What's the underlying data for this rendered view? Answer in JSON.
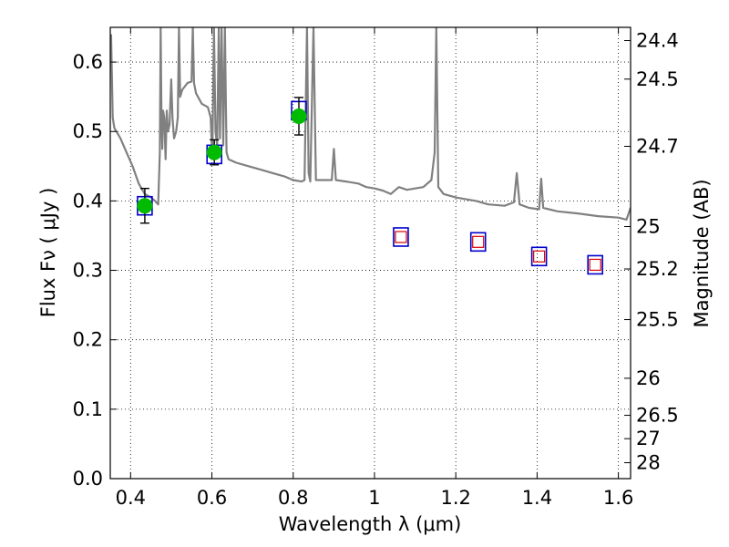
{
  "chart_data": {
    "type": "scatter",
    "title": "",
    "xlabel": "Wavelength  λ (μm)",
    "ylabel": "Flux  Fν  ( μJy )",
    "y2label": "Magnitude (AB)",
    "xlim": [
      0.35,
      1.63
    ],
    "ylim": [
      0.0,
      0.65
    ],
    "grid": true,
    "x_ticks": [
      0.4,
      0.6,
      0.8,
      1.0,
      1.2,
      1.4,
      1.6
    ],
    "x_tick_labels": [
      "0.4",
      "0.6",
      "0.8",
      "1",
      "1.2",
      "1.4",
      "1.6"
    ],
    "y_ticks": [
      0.0,
      0.1,
      0.2,
      0.3,
      0.4,
      0.5,
      0.6
    ],
    "y_tick_labels": [
      "0.0",
      "0.1",
      "0.2",
      "0.3",
      "0.4",
      "0.5",
      "0.6"
    ],
    "mag_ticks": [
      24.4,
      24.5,
      24.7,
      25,
      25.2,
      25.5,
      26,
      26.5,
      27,
      28
    ],
    "mag_tick_labels": [
      "24.4",
      "24.5",
      "24.7",
      "25",
      "25.2",
      "25.5",
      "26",
      "26.5",
      "27",
      "28"
    ],
    "series": [
      {
        "name": "model-sed",
        "kind": "line",
        "color": "#808080",
        "points": [
          [
            0.352,
            0.64
          ],
          [
            0.356,
            0.52
          ],
          [
            0.36,
            0.505
          ],
          [
            0.375,
            0.49
          ],
          [
            0.39,
            0.47
          ],
          [
            0.405,
            0.45
          ],
          [
            0.42,
            0.425
          ],
          [
            0.435,
            0.41
          ],
          [
            0.45,
            0.405
          ],
          [
            0.46,
            0.4
          ],
          [
            0.468,
            0.395
          ],
          [
            0.472,
            0.47
          ],
          [
            0.474,
            0.65
          ],
          [
            0.476,
            0.52
          ],
          [
            0.478,
            0.475
          ],
          [
            0.48,
            0.53
          ],
          [
            0.483,
            0.52
          ],
          [
            0.486,
            0.46
          ],
          [
            0.489,
            0.53
          ],
          [
            0.492,
            0.5
          ],
          [
            0.496,
            0.51
          ],
          [
            0.5,
            0.575
          ],
          [
            0.503,
            0.52
          ],
          [
            0.507,
            0.49
          ],
          [
            0.512,
            0.5
          ],
          [
            0.516,
            0.52
          ],
          [
            0.519,
            0.65
          ],
          [
            0.522,
            0.55
          ],
          [
            0.527,
            0.56
          ],
          [
            0.54,
            0.57
          ],
          [
            0.55,
            0.572
          ],
          [
            0.553,
            0.65
          ],
          [
            0.556,
            0.57
          ],
          [
            0.561,
            0.555
          ],
          [
            0.575,
            0.54
          ],
          [
            0.59,
            0.535
          ],
          [
            0.597,
            0.52
          ],
          [
            0.601,
            0.46
          ],
          [
            0.605,
            0.65
          ],
          [
            0.609,
            0.5
          ],
          [
            0.613,
            0.48
          ],
          [
            0.617,
            0.65
          ],
          [
            0.62,
            0.49
          ],
          [
            0.624,
            0.65
          ],
          [
            0.628,
            0.48
          ],
          [
            0.632,
            0.65
          ],
          [
            0.636,
            0.47
          ],
          [
            0.641,
            0.46
          ],
          [
            0.66,
            0.455
          ],
          [
            0.69,
            0.45
          ],
          [
            0.72,
            0.445
          ],
          [
            0.75,
            0.44
          ],
          [
            0.78,
            0.435
          ],
          [
            0.8,
            0.43
          ],
          [
            0.82,
            0.428
          ],
          [
            0.828,
            0.43
          ],
          [
            0.834,
            0.65
          ],
          [
            0.838,
            0.44
          ],
          [
            0.842,
            0.428
          ],
          [
            0.85,
            0.65
          ],
          [
            0.856,
            0.43
          ],
          [
            0.87,
            0.43
          ],
          [
            0.895,
            0.43
          ],
          [
            0.9,
            0.475
          ],
          [
            0.905,
            0.43
          ],
          [
            0.93,
            0.428
          ],
          [
            0.96,
            0.425
          ],
          [
            0.98,
            0.42
          ],
          [
            1.0,
            0.418
          ],
          [
            1.02,
            0.415
          ],
          [
            1.04,
            0.41
          ],
          [
            1.06,
            0.42
          ],
          [
            1.08,
            0.416
          ],
          [
            1.1,
            0.418
          ],
          [
            1.12,
            0.42
          ],
          [
            1.14,
            0.43
          ],
          [
            1.148,
            0.47
          ],
          [
            1.152,
            0.65
          ],
          [
            1.157,
            0.42
          ],
          [
            1.17,
            0.41
          ],
          [
            1.2,
            0.405
          ],
          [
            1.25,
            0.4
          ],
          [
            1.28,
            0.395
          ],
          [
            1.32,
            0.393
          ],
          [
            1.343,
            0.398
          ],
          [
            1.35,
            0.44
          ],
          [
            1.357,
            0.395
          ],
          [
            1.38,
            0.39
          ],
          [
            1.405,
            0.388
          ],
          [
            1.41,
            0.432
          ],
          [
            1.415,
            0.39
          ],
          [
            1.45,
            0.385
          ],
          [
            1.5,
            0.382
          ],
          [
            1.55,
            0.378
          ],
          [
            1.6,
            0.376
          ],
          [
            1.62,
            0.373
          ],
          [
            1.63,
            0.39
          ]
        ]
      },
      {
        "name": "observed-flux",
        "kind": "markers",
        "color": "#00bb00",
        "points": [
          {
            "x": 0.435,
            "y": 0.393,
            "err": 0.025
          },
          {
            "x": 0.606,
            "y": 0.47,
            "err": 0.018
          },
          {
            "x": 0.814,
            "y": 0.522,
            "err": 0.027
          }
        ]
      },
      {
        "name": "model-flux-box",
        "kind": "markers",
        "color": "#0000cc",
        "points": [
          {
            "x": 0.435,
            "y": 0.393
          },
          {
            "x": 0.606,
            "y": 0.467
          },
          {
            "x": 0.814,
            "y": 0.53
          },
          {
            "x": 1.065,
            "y": 0.348
          },
          {
            "x": 1.255,
            "y": 0.341
          },
          {
            "x": 1.405,
            "y": 0.32
          },
          {
            "x": 1.543,
            "y": 0.308
          }
        ]
      },
      {
        "name": "model-flux-upper",
        "kind": "markers",
        "color": "#dd0000",
        "points": [
          {
            "x": 1.065,
            "y": 0.348
          },
          {
            "x": 1.255,
            "y": 0.341
          },
          {
            "x": 1.405,
            "y": 0.32
          },
          {
            "x": 1.543,
            "y": 0.308
          }
        ]
      }
    ]
  }
}
